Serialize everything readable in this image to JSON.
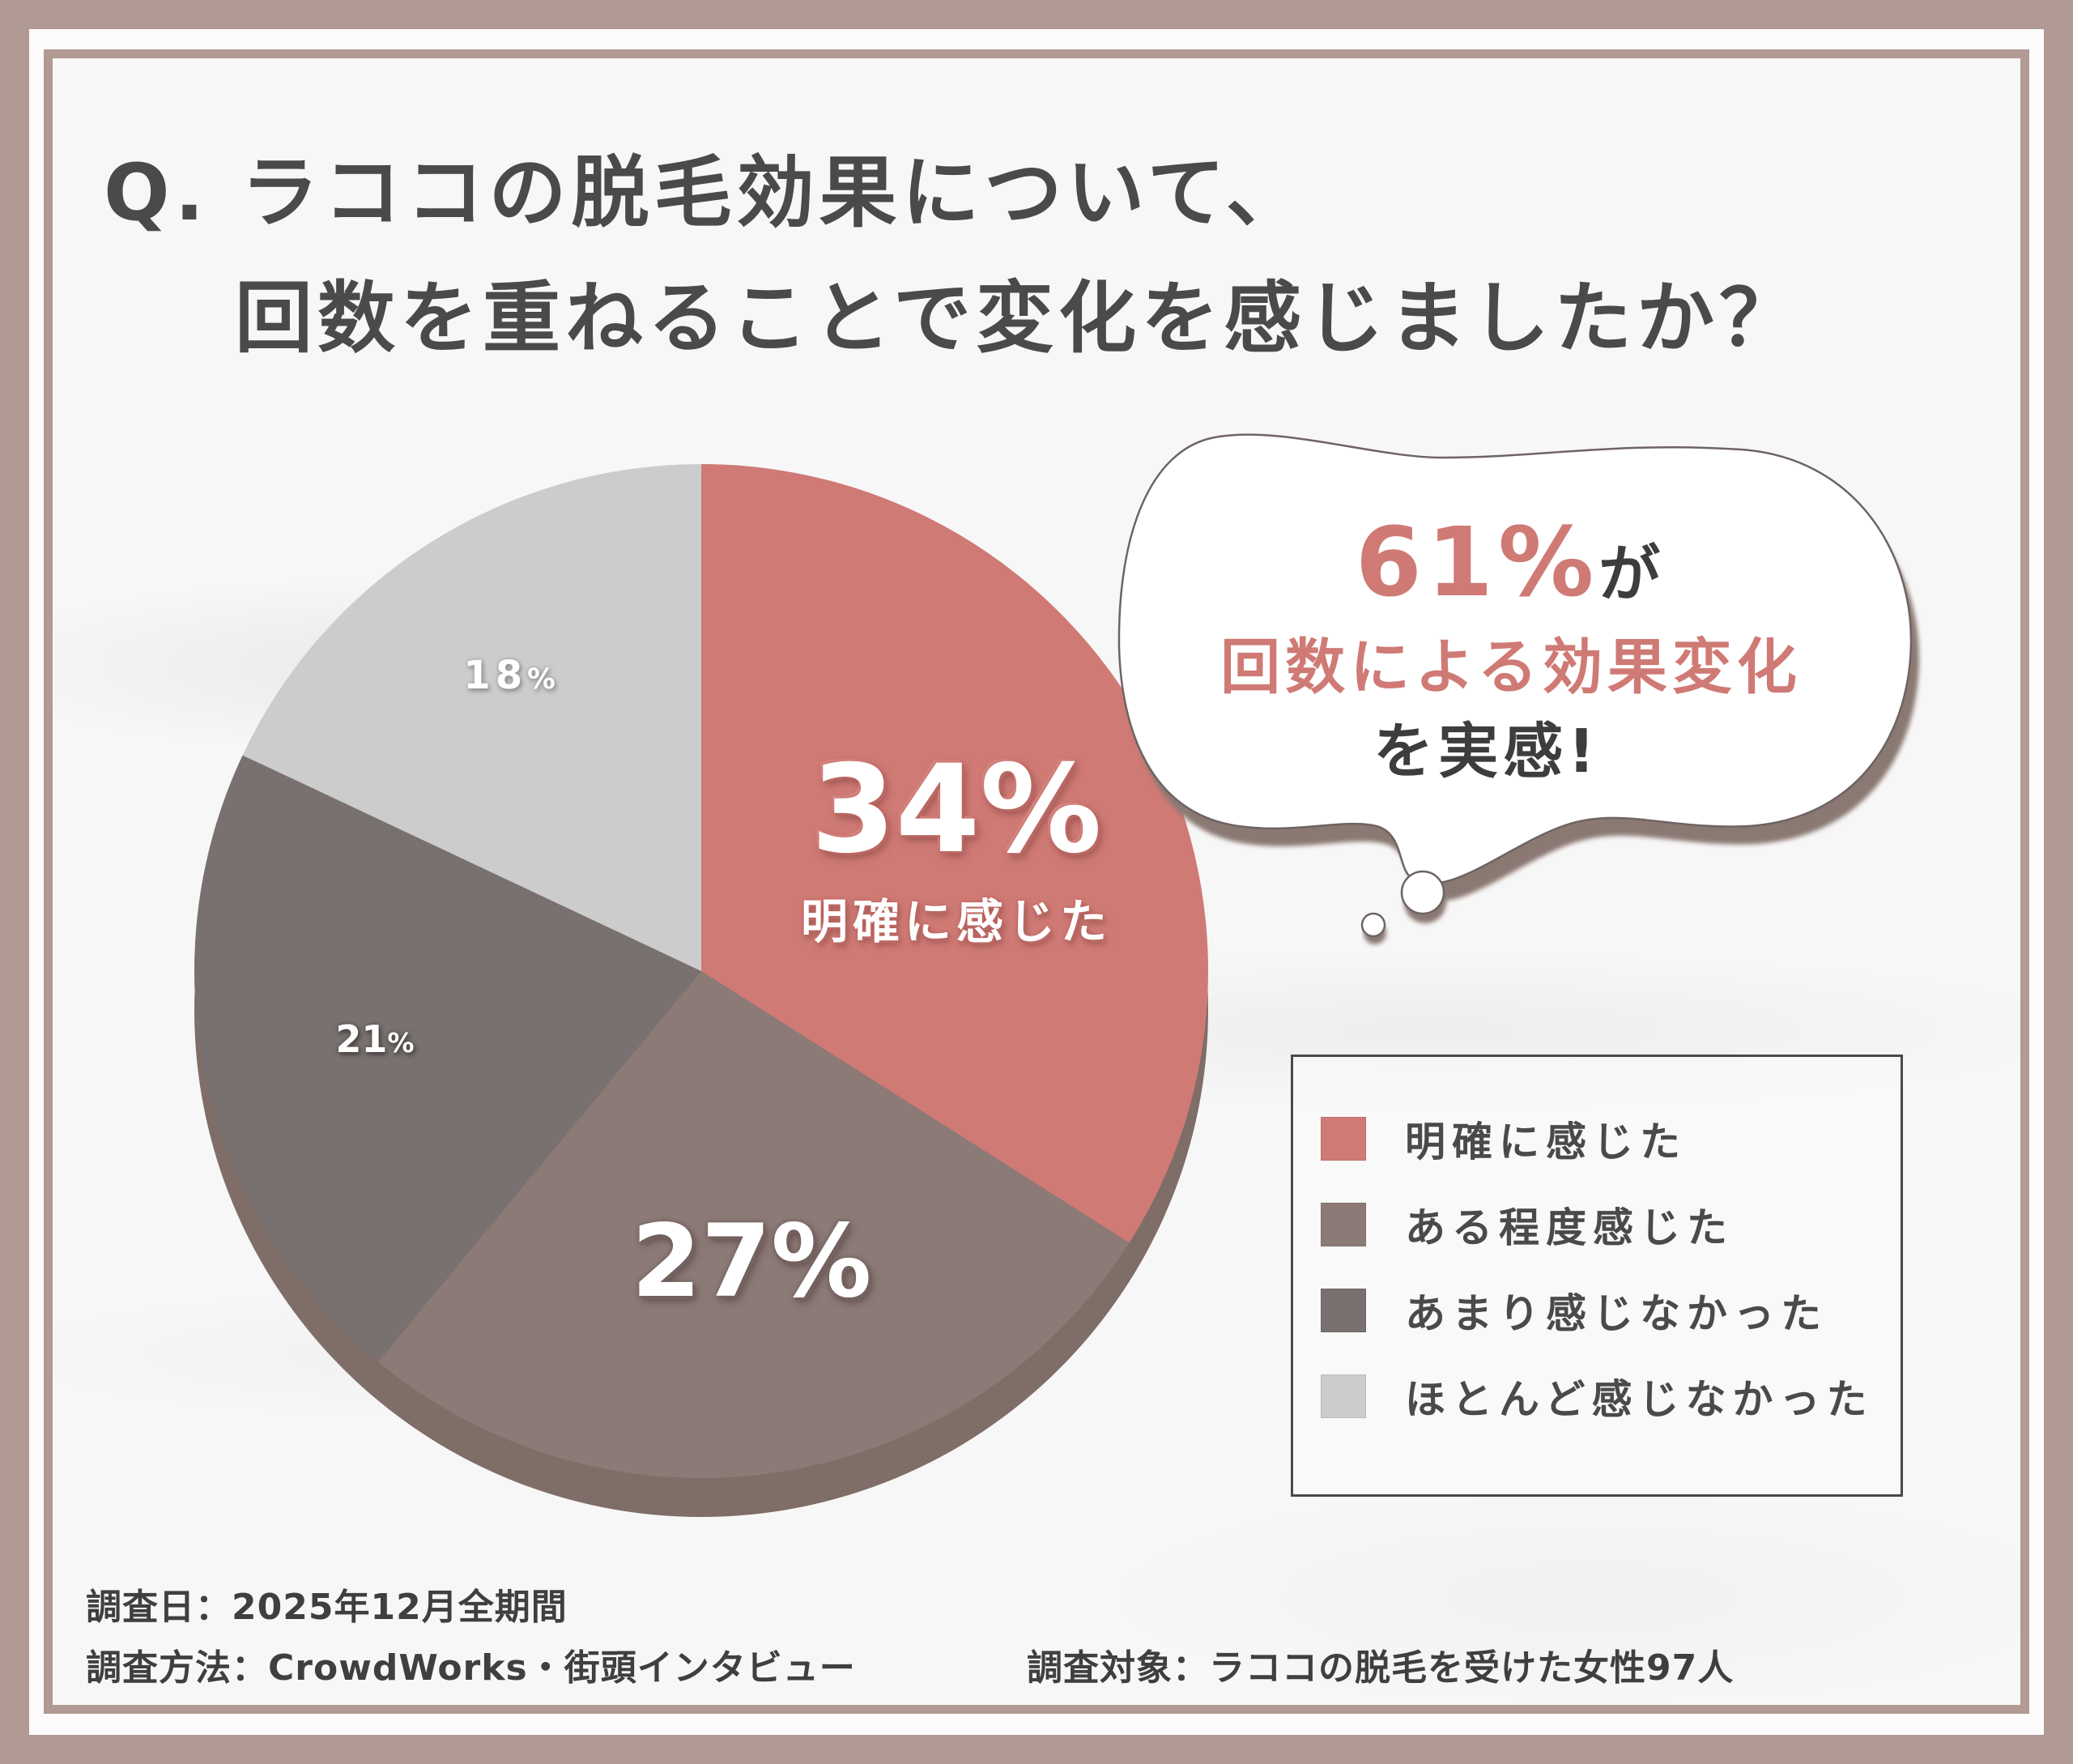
{
  "title": {
    "line1": "Q. ラココの脱毛効果について、",
    "line2": "回数を重ねることで変化を感じましたか？"
  },
  "chart_data": {
    "type": "pie",
    "title": "Q. ラココの脱毛効果について、回数を重ねることで変化を感じましたか？",
    "start_angle_deg": 0,
    "direction": "clockwise",
    "categories": [
      "明確に感じた",
      "ある程度感じた",
      "あまり感じなかった",
      "ほとんど感じなかった"
    ],
    "values": [
      34,
      27,
      21,
      18
    ],
    "unit": "%",
    "colors": [
      "#cf7a75",
      "#8c7a77",
      "#78716f",
      "#cccccc"
    ],
    "slice_labels": [
      "34%",
      "27%",
      "21%",
      "18%"
    ],
    "highlight": {
      "slice": "明確に感じた",
      "label": "34%",
      "sublabel": "明確に感じた"
    },
    "legend_position": "right-bottom",
    "depth_color": "#7f6d67"
  },
  "labels": {
    "s34_num": "34",
    "s34_pct": "%",
    "s34_sub": "明確に感じた",
    "s27_num": "27",
    "s27_pct": "%",
    "s21_num": "21",
    "s21_pct": "%",
    "s18_num": "18",
    "s18_pct": "%"
  },
  "callout": {
    "big_value": "61%",
    "big_suffix": "が",
    "line2": "回数による効果変化",
    "line3": "を実感!"
  },
  "legend": {
    "items": [
      {
        "label": "明確に感じた",
        "color": "#cf7a75"
      },
      {
        "label": "ある程度感じた",
        "color": "#8c7a77"
      },
      {
        "label": "あまり感じなかった",
        "color": "#78716f"
      },
      {
        "label": "ほとんど感じなかった",
        "color": "#cccccc"
      }
    ]
  },
  "footer": {
    "date": "調査日：2025年12月全期間",
    "method": "調査方法：CrowdWorks・街頭インタビュー",
    "target": "調査対象：ラココの脱毛を受けた女性97人"
  },
  "colors": {
    "frame": "#b09a93",
    "title_text": "#4a4a4a",
    "accent": "#cf7a75"
  }
}
